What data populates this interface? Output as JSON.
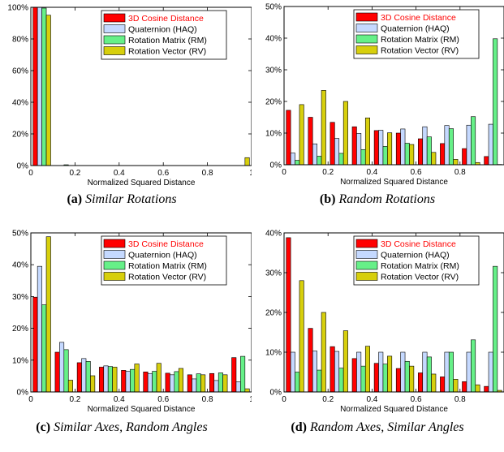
{
  "colors": {
    "cosine": "#ff0000",
    "haq": "#c5d9ff",
    "rm": "#66f088",
    "rv": "#d7cf0c"
  },
  "chart_data": [
    {
      "type": "bar",
      "caption_label": "(a)",
      "caption_text": "Similar Rotations",
      "xlabel": "Normalized Squared Distance",
      "xlim": [
        0,
        1
      ],
      "ylim": [
        0,
        100
      ],
      "xticks": [
        "0",
        "0.2",
        "0.4",
        "0.6",
        "0.8",
        "1"
      ],
      "yticks": [
        "0%",
        "20%",
        "40%",
        "60%",
        "80%",
        "100%"
      ],
      "legend_position": "top-right",
      "x": [
        0.05,
        0.15,
        0.25,
        0.35,
        0.45,
        0.55,
        0.65,
        0.75,
        0.85,
        0.95
      ],
      "series": [
        {
          "name": "3D Cosine Distance",
          "values": [
            100,
            0,
            0,
            0,
            0,
            0,
            0,
            0,
            0,
            0
          ]
        },
        {
          "name": "Quaternion (HAQ)",
          "values": [
            100,
            0,
            0,
            0,
            0,
            0,
            0,
            0,
            0,
            0
          ]
        },
        {
          "name": "Rotation Matrix (RM)",
          "values": [
            99.5,
            0.5,
            0,
            0,
            0,
            0,
            0,
            0,
            0,
            0
          ]
        },
        {
          "name": "Rotation Vector (RV)",
          "values": [
            95,
            0,
            0,
            0,
            0,
            0,
            0,
            0,
            0,
            5
          ]
        }
      ]
    },
    {
      "type": "bar",
      "caption_label": "(b)",
      "caption_text": "Random Rotations",
      "xlabel": "Normalized Squared Distance",
      "xlim": [
        0,
        1
      ],
      "ylim": [
        0,
        50
      ],
      "xticks": [
        "0",
        "0.2",
        "0.4",
        "0.6",
        "0.8",
        ""
      ],
      "yticks": [
        "0%",
        "10%",
        "20%",
        "30%",
        "40%",
        "50%"
      ],
      "legend_position": "top-right",
      "x": [
        0.05,
        0.15,
        0.25,
        0.35,
        0.45,
        0.55,
        0.65,
        0.75,
        0.85,
        0.95
      ],
      "series": [
        {
          "name": "3D Cosine Distance",
          "values": [
            17.2,
            15,
            13.4,
            12,
            10.8,
            10,
            8.2,
            6.7,
            5.1,
            2.6
          ]
        },
        {
          "name": "Quaternion (HAQ)",
          "values": [
            3.7,
            6.6,
            8.3,
            9.9,
            10.9,
            11.3,
            12,
            12.4,
            12.5,
            12.8
          ]
        },
        {
          "name": "Rotation Matrix (RM)",
          "values": [
            1.4,
            2.7,
            3.6,
            4.8,
            5.8,
            6.8,
            8.8,
            11.4,
            15.2,
            39.8
          ]
        },
        {
          "name": "Rotation Vector (RV)",
          "values": [
            19,
            23.5,
            20,
            14.8,
            10.1,
            6.4,
            3.9,
            1.7,
            0.7,
            0.1
          ]
        }
      ]
    },
    {
      "type": "bar",
      "caption_label": "(c)",
      "caption_text": "Similar Axes, Random Angles",
      "xlabel": "Normalized Squared Distance",
      "xlim": [
        0,
        1
      ],
      "ylim": [
        0,
        50
      ],
      "xticks": [
        "0",
        "0.2",
        "0.4",
        "0.6",
        "0.8",
        "1"
      ],
      "yticks": [
        "0%",
        "10%",
        "20%",
        "30%",
        "40%",
        "50%"
      ],
      "legend_position": "top-right",
      "x": [
        0.05,
        0.15,
        0.25,
        0.35,
        0.45,
        0.55,
        0.65,
        0.75,
        0.85,
        0.95
      ],
      "series": [
        {
          "name": "3D Cosine Distance",
          "values": [
            29.8,
            12.5,
            9.2,
            7.8,
            6.8,
            6.3,
            5.9,
            5.4,
            5.8,
            10.8
          ]
        },
        {
          "name": "Quaternion (HAQ)",
          "values": [
            39.5,
            15.6,
            10.5,
            8.2,
            6.5,
            5.8,
            5.4,
            4.1,
            3.6,
            3.2
          ]
        },
        {
          "name": "Rotation Matrix (RM)",
          "values": [
            27.4,
            13.3,
            9.6,
            8,
            7.1,
            6.5,
            6.4,
            5.7,
            6,
            11.2
          ]
        },
        {
          "name": "Rotation Vector (RV)",
          "values": [
            48.8,
            3.7,
            5.1,
            7.8,
            8.8,
            9,
            7.4,
            5.4,
            5.4,
            1
          ]
        }
      ]
    },
    {
      "type": "bar",
      "caption_label": "(d)",
      "caption_text": "Random Axes, Similar Angles",
      "xlabel": "Normalized Squared Distance",
      "xlim": [
        0,
        1
      ],
      "ylim": [
        0,
        40
      ],
      "xticks": [
        "0",
        "0.2",
        "0.4",
        "0.6",
        "0.8",
        ""
      ],
      "yticks": [
        "0%",
        "10%",
        "20%",
        "30%",
        "40%"
      ],
      "legend_position": "top-right",
      "x": [
        0.05,
        0.15,
        0.25,
        0.35,
        0.45,
        0.55,
        0.65,
        0.75,
        0.85,
        0.95
      ],
      "series": [
        {
          "name": "3D Cosine Distance",
          "values": [
            38.8,
            16,
            11.4,
            8.4,
            7.2,
            5.9,
            4.8,
            3.8,
            2.6,
            1.4
          ]
        },
        {
          "name": "Quaternion (HAQ)",
          "values": [
            10,
            10.3,
            10.2,
            10,
            10,
            10,
            10,
            10,
            10,
            10
          ]
        },
        {
          "name": "Rotation Matrix (RM)",
          "values": [
            5,
            5.5,
            6,
            6.5,
            7,
            7.7,
            8.8,
            10,
            13.1,
            31.6
          ]
        },
        {
          "name": "Rotation Vector (RV)",
          "values": [
            28,
            20,
            15.4,
            11.5,
            9,
            6.5,
            4.5,
            3.2,
            1.8,
            0.4
          ]
        }
      ]
    }
  ]
}
